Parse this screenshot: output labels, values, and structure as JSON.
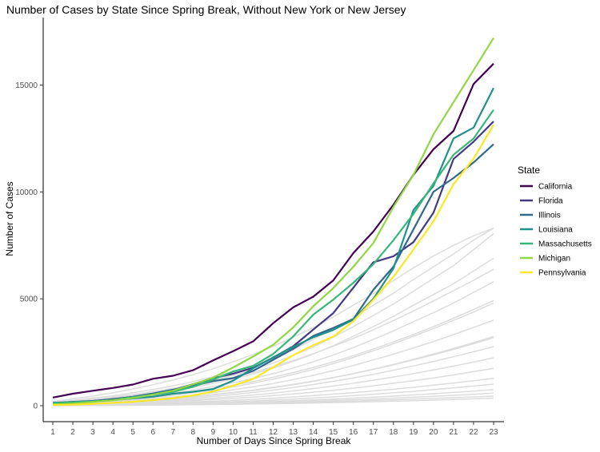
{
  "chart_data": {
    "type": "line",
    "title": "Number of Cases by State Since Spring Break, Without New York or New Jersey",
    "xlabel": "Number of Days Since Spring Break",
    "ylabel": "Number of Cases",
    "xlim": [
      1,
      23
    ],
    "ylim": [
      0,
      17500
    ],
    "x_ticks": [
      1,
      2,
      3,
      4,
      5,
      6,
      7,
      8,
      9,
      10,
      11,
      12,
      13,
      14,
      15,
      16,
      17,
      18,
      19,
      20,
      21,
      22,
      23
    ],
    "y_ticks": [
      0,
      5000,
      10000,
      15000
    ],
    "grid": false,
    "legend_title": "State",
    "legend_position": "right",
    "x": [
      1,
      2,
      3,
      4,
      5,
      6,
      7,
      8,
      9,
      10,
      11,
      12,
      13,
      14,
      15,
      16,
      17,
      18,
      19,
      20,
      21,
      22,
      23
    ],
    "series": [
      {
        "name": "California",
        "color": "#440154",
        "values": [
          380,
          560,
          700,
          830,
          990,
          1260,
          1400,
          1660,
          2120,
          2550,
          3010,
          3860,
          4600,
          5100,
          5860,
          7140,
          8150,
          9400,
          10800,
          12000,
          12850,
          15050,
          16000
        ]
      },
      {
        "name": "Florida",
        "color": "#443983",
        "values": [
          120,
          180,
          220,
          310,
          410,
          560,
          730,
          1010,
          1280,
          1500,
          1770,
          2250,
          2780,
          3560,
          4330,
          5520,
          6710,
          6990,
          7650,
          9030,
          11540,
          12350,
          13300
        ]
      },
      {
        "name": "Illinois",
        "color": "#31688e",
        "values": [
          100,
          160,
          220,
          290,
          420,
          570,
          750,
          940,
          1150,
          1290,
          1630,
          2150,
          2660,
          3260,
          3640,
          4050,
          5420,
          6500,
          8250,
          10010,
          10650,
          11380,
          12230
        ]
      },
      {
        "name": "Louisiana",
        "color": "#21918c",
        "values": [
          140,
          170,
          200,
          260,
          340,
          420,
          560,
          650,
          780,
          1170,
          1750,
          2260,
          2750,
          3200,
          3540,
          4030,
          5000,
          6420,
          9150,
          10290,
          12500,
          13010,
          14860
        ]
      },
      {
        "name": "Massachusetts",
        "color": "#35b779",
        "values": [
          110,
          160,
          200,
          270,
          400,
          510,
          650,
          880,
          1220,
          1600,
          1860,
          2420,
          3240,
          4260,
          4960,
          5750,
          6620,
          7740,
          8970,
          10400,
          11740,
          12500,
          13840
        ]
      },
      {
        "name": "Michigan",
        "color": "#90d743",
        "values": [
          60,
          100,
          180,
          250,
          360,
          520,
          700,
          1000,
          1310,
          1790,
          2300,
          2850,
          3660,
          4650,
          5500,
          6500,
          7610,
          9300,
          10800,
          12700,
          14200,
          15700,
          17200
        ]
      },
      {
        "name": "Pennsylvania",
        "color": "#fde725",
        "values": [
          30,
          50,
          90,
          130,
          180,
          260,
          350,
          480,
          660,
          930,
          1260,
          1800,
          2360,
          2830,
          3230,
          3950,
          4950,
          6030,
          7300,
          8620,
          10360,
          11560,
          13140
        ]
      }
    ],
    "background_series": [
      [
        150,
        250,
        360,
        460,
        600,
        760,
        930,
        1130,
        1360,
        1600,
        1900,
        2230,
        2620,
        3100,
        3600,
        4130,
        4700,
        5260,
        5900,
        6500,
        7100,
        7750,
        8300
      ],
      [
        120,
        210,
        300,
        400,
        520,
        660,
        810,
        990,
        1190,
        1420,
        1680,
        1990,
        2350,
        2750,
        3200,
        3700,
        4220,
        4760,
        5350,
        5960,
        6550,
        7300,
        8050
      ],
      [
        100,
        170,
        250,
        340,
        440,
        560,
        700,
        860,
        1040,
        1250,
        1490,
        1760,
        2070,
        2420,
        2810,
        3250,
        3700,
        4180,
        4700,
        5200,
        5700,
        6300,
        6900
      ],
      [
        80,
        140,
        210,
        290,
        380,
        480,
        600,
        740,
        890,
        1070,
        1270,
        1500,
        1760,
        2050,
        2370,
        2720,
        3100,
        3500,
        3930,
        4350,
        4800,
        5300,
        5800
      ],
      [
        60,
        110,
        170,
        230,
        300,
        380,
        480,
        600,
        730,
        880,
        1050,
        1240,
        1460,
        1700,
        1970,
        2260,
        2570,
        2900,
        3250,
        3610,
        3990,
        4380,
        4800
      ],
      [
        50,
        90,
        140,
        190,
        250,
        320,
        400,
        500,
        610,
        740,
        880,
        1040,
        1220,
        1420,
        1640,
        1880,
        2140,
        2410,
        2700,
        3000,
        3320,
        3660,
        4000
      ],
      [
        40,
        70,
        110,
        150,
        200,
        260,
        330,
        410,
        500,
        600,
        710,
        840,
        980,
        1140,
        1310,
        1500,
        1710,
        1930,
        2170,
        2420,
        2680,
        2950,
        3240
      ],
      [
        30,
        60,
        90,
        130,
        170,
        220,
        280,
        350,
        430,
        520,
        620,
        730,
        850,
        990,
        1140,
        1300,
        1470,
        1660,
        1860,
        2070,
        2290,
        2520,
        2760
      ],
      [
        25,
        50,
        75,
        105,
        140,
        180,
        230,
        290,
        350,
        420,
        500,
        590,
        690,
        800,
        920,
        1050,
        1190,
        1340,
        1500,
        1670,
        1850,
        2040,
        2240
      ],
      [
        20,
        40,
        60,
        85,
        115,
        150,
        190,
        235,
        285,
        340,
        400,
        470,
        550,
        630,
        720,
        820,
        930,
        1050,
        1170,
        1300,
        1440,
        1590,
        1750
      ],
      [
        15,
        30,
        45,
        65,
        85,
        110,
        140,
        175,
        210,
        250,
        300,
        350,
        410,
        470,
        540,
        610,
        690,
        770,
        860,
        960,
        1060,
        1170,
        1280
      ],
      [
        10,
        20,
        35,
        50,
        65,
        85,
        105,
        130,
        160,
        190,
        225,
        265,
        310,
        360,
        410,
        470,
        530,
        600,
        670,
        750,
        830,
        920,
        1010
      ],
      [
        10,
        15,
        25,
        35,
        50,
        65,
        80,
        100,
        120,
        145,
        170,
        200,
        235,
        270,
        310,
        355,
        400,
        450,
        505,
        560,
        620,
        685,
        750
      ],
      [
        5,
        10,
        20,
        30,
        40,
        50,
        65,
        80,
        95,
        115,
        135,
        160,
        185,
        215,
        245,
        280,
        315,
        355,
        395,
        440,
        485,
        535,
        590
      ],
      [
        5,
        10,
        15,
        20,
        30,
        40,
        50,
        60,
        75,
        90,
        105,
        125,
        145,
        165,
        190,
        215,
        245,
        275,
        305,
        340,
        375,
        410,
        450
      ],
      [
        5,
        5,
        10,
        15,
        20,
        25,
        35,
        45,
        55,
        65,
        80,
        95,
        110,
        125,
        145,
        165,
        185,
        210,
        235,
        260,
        290,
        320,
        350
      ],
      [
        200,
        320,
        450,
        600,
        780,
        980,
        1200,
        1450,
        1730,
        2050,
        2400,
        2780,
        3200,
        3650,
        4150,
        4700,
        5250,
        5850,
        6450,
        7000,
        7500,
        7950,
        8300
      ],
      [
        100,
        180,
        260,
        360,
        470,
        600,
        750,
        920,
        1110,
        1320,
        1560,
        1820,
        2110,
        2430,
        2780,
        3150,
        3550,
        3980,
        4430,
        4900,
        5380,
        5870,
        6380
      ],
      [
        70,
        130,
        190,
        260,
        340,
        430,
        540,
        660,
        800,
        960,
        1130,
        1330,
        1550,
        1790,
        2050,
        2340,
        2650,
        2980,
        3330,
        3700,
        4090,
        4500,
        4920
      ],
      [
        40,
        80,
        120,
        170,
        220,
        280,
        350,
        430,
        520,
        620,
        730,
        860,
        1000,
        1150,
        1320,
        1500,
        1700,
        1910,
        2140,
        2380,
        2630,
        2900,
        3180
      ]
    ]
  }
}
